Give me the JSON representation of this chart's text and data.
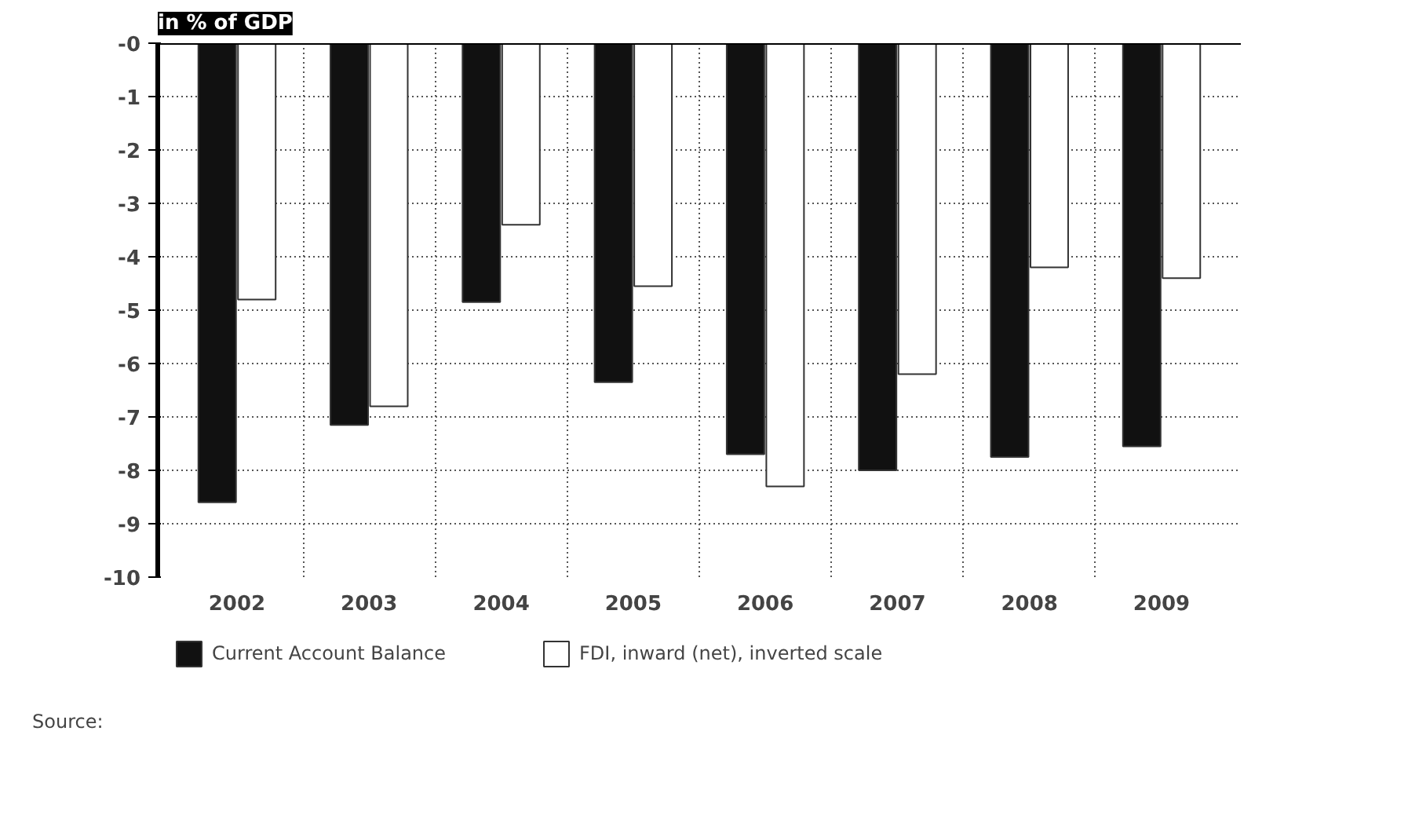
{
  "chart_data": {
    "type": "bar",
    "title": "in % of GDP",
    "categories": [
      "2002",
      "2003",
      "2004",
      "2005",
      "2006",
      "2007",
      "2008",
      "2009"
    ],
    "series": [
      {
        "name": "Current Account Balance",
        "color": "#111111",
        "values": [
          -8.6,
          -7.15,
          -4.85,
          -6.35,
          -7.7,
          -8.0,
          -7.75,
          -7.55
        ]
      },
      {
        "name": "FDI, inward (net), inverted scale",
        "color": "#ffffff",
        "values": [
          -4.8,
          -6.8,
          -3.4,
          -4.55,
          -8.3,
          -6.2,
          -4.2,
          -4.4
        ]
      }
    ],
    "ylim": [
      -10,
      0
    ],
    "yticks": [
      {
        "value": 0,
        "label": "-0"
      },
      -1,
      -2,
      -3,
      -4,
      -5,
      -6,
      -7,
      -8,
      -9,
      -10
    ],
    "grid": true,
    "legend": "bottom",
    "annotations": [
      "Source:"
    ]
  }
}
